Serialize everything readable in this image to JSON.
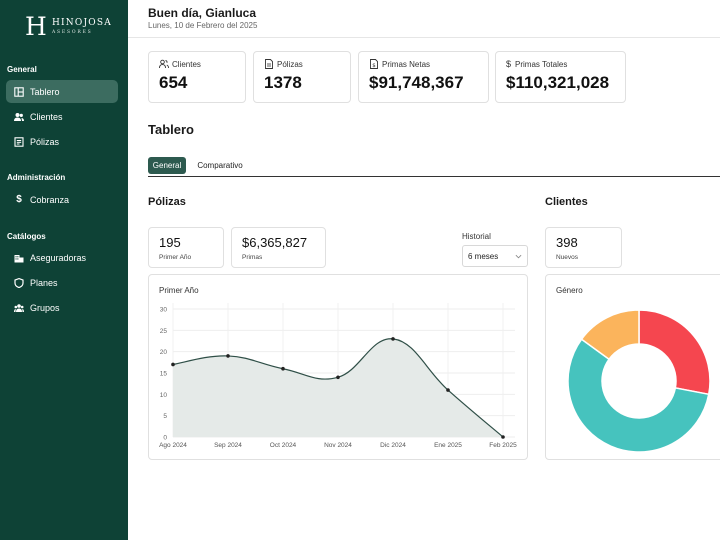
{
  "sidebar": {
    "logo_letter": "H",
    "logo_name": "HINOJOSA",
    "logo_sub": "ASESORES",
    "sections": [
      {
        "title": "General",
        "items": [
          {
            "label": "Tablero",
            "icon": "dashboard-icon",
            "active": true
          },
          {
            "label": "Clientes",
            "icon": "users-icon",
            "active": false
          },
          {
            "label": "Pólizas",
            "icon": "policy-icon",
            "active": false
          }
        ]
      },
      {
        "title": "Administración",
        "items": [
          {
            "label": "Cobranza",
            "icon": "dollar-icon",
            "active": false
          }
        ]
      },
      {
        "title": "Catálogos",
        "items": [
          {
            "label": "Aseguradoras",
            "icon": "building-icon",
            "active": false
          },
          {
            "label": "Planes",
            "icon": "shield-icon",
            "active": false
          },
          {
            "label": "Grupos",
            "icon": "group-icon",
            "active": false
          }
        ]
      }
    ]
  },
  "header": {
    "greeting": "Buen día, Gianluca",
    "date": "Lunes, 10 de Febrero del 2025"
  },
  "stats": [
    {
      "label": "Clientes",
      "value": "654",
      "icon": "users-icon"
    },
    {
      "label": "Pólizas",
      "value": "1378",
      "icon": "document-icon"
    },
    {
      "label": "Primas Netas",
      "value": "$91,748,367",
      "icon": "document-dollar-icon"
    },
    {
      "label": "Primas Totales",
      "value": "$110,321,028",
      "icon": "dollar-icon"
    }
  ],
  "page_title": "Tablero",
  "tabs": [
    {
      "label": "General",
      "active": true
    },
    {
      "label": "Comparativo",
      "active": false
    }
  ],
  "polizas": {
    "title": "Pólizas",
    "kpis": [
      {
        "value": "195",
        "label": "Primer Año"
      },
      {
        "value": "$6,365,827",
        "label": "Primas"
      }
    ],
    "historial_label": "Historial",
    "historial_value": "6 meses"
  },
  "clientes": {
    "title": "Clientes",
    "kpis": [
      {
        "value": "398",
        "label": "Nuevos"
      }
    ]
  },
  "colors": {
    "sidebar": "#0e4236",
    "accent": "#2d5a4f",
    "line": "#2f4f47",
    "area": "#e5eae8",
    "pie_red": "#f5464f",
    "pie_teal": "#46c3be",
    "pie_orange": "#fbb45c"
  },
  "chart_data": [
    {
      "type": "area",
      "title": "Primer Año",
      "categories": [
        "Ago 2024",
        "Sep 2024",
        "Oct 2024",
        "Nov 2024",
        "Dic 2024",
        "Ene 2025",
        "Feb 2025"
      ],
      "values": [
        17,
        19,
        16,
        14,
        23,
        11,
        0
      ],
      "ylim": [
        0,
        30
      ],
      "yticks": [
        0,
        5,
        10,
        15,
        20,
        25,
        30
      ],
      "grid": true
    },
    {
      "type": "pie",
      "title": "Género",
      "values": [
        28,
        57,
        15
      ],
      "colors": [
        "#f5464f",
        "#46c3be",
        "#fbb45c"
      ]
    }
  ]
}
